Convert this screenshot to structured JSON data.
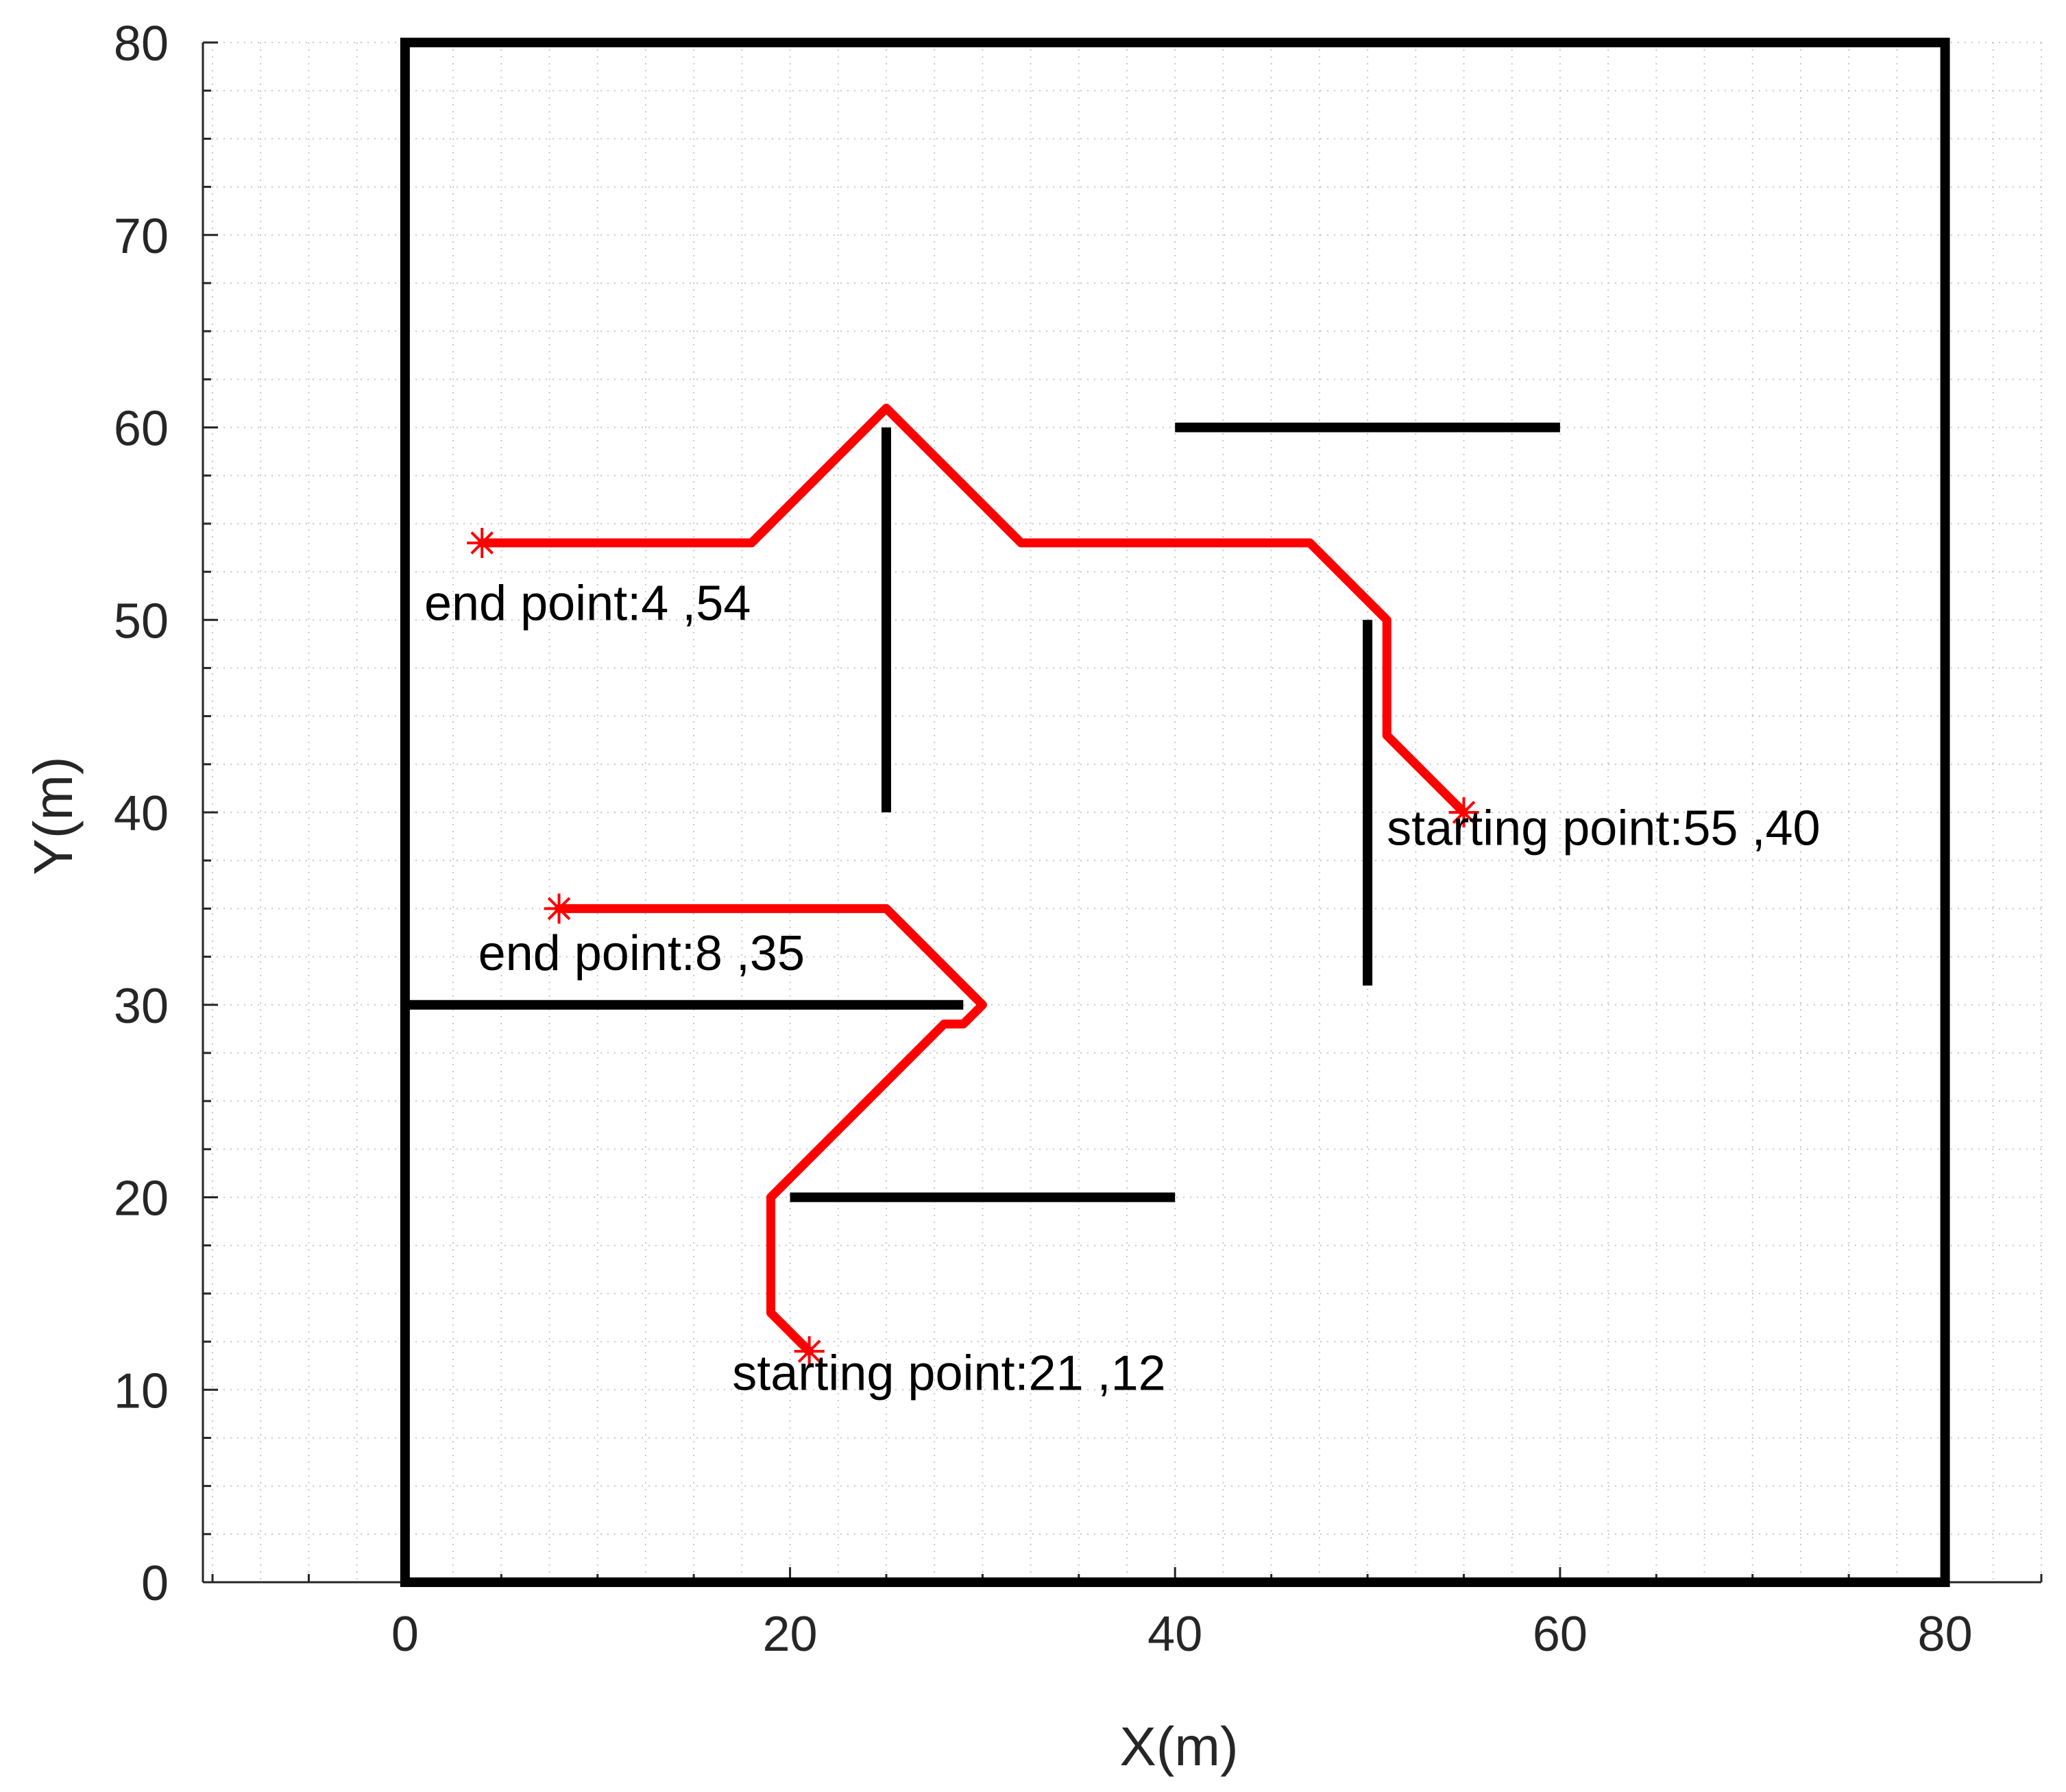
{
  "chart_data": {
    "type": "line",
    "xlabel": "X(m)",
    "ylabel": "Y(m)",
    "xlim": [
      -10.5,
      85
    ],
    "ylim": [
      0,
      80
    ],
    "xticks": [
      0,
      20,
      40,
      60,
      80
    ],
    "yticks": [
      0,
      10,
      20,
      30,
      40,
      50,
      60,
      70,
      80
    ],
    "grid": "minor-dotted",
    "colors": {
      "path": "#ff0000",
      "obstacle": "#000000",
      "grid": "#c8c8c8"
    },
    "boundary": {
      "x": [
        0,
        80
      ],
      "y": [
        0,
        80
      ]
    },
    "obstacles": [
      {
        "x": [
          25,
          25
        ],
        "y": [
          40,
          60
        ]
      },
      {
        "x": [
          40,
          60
        ],
        "y": [
          60,
          60
        ]
      },
      {
        "x": [
          50,
          50
        ],
        "y": [
          31,
          50
        ]
      },
      {
        "x": [
          0,
          29
        ],
        "y": [
          30,
          30
        ]
      },
      {
        "x": [
          20,
          40
        ],
        "y": [
          20,
          20
        ]
      }
    ],
    "series": [
      {
        "points": [
          [
            55,
            40
          ],
          [
            51,
            44
          ],
          [
            51,
            50
          ],
          [
            47,
            54
          ],
          [
            32,
            54
          ],
          [
            25,
            61
          ],
          [
            18,
            54
          ],
          [
            4,
            54
          ]
        ],
        "start": [
          55,
          40
        ],
        "end": [
          4,
          54
        ]
      },
      {
        "points": [
          [
            21,
            12
          ],
          [
            19,
            14
          ],
          [
            19,
            20
          ],
          [
            28,
            29
          ],
          [
            29,
            29
          ],
          [
            30,
            30
          ],
          [
            25,
            35
          ],
          [
            8,
            35
          ]
        ],
        "start": [
          21,
          12
        ],
        "end": [
          8,
          35
        ]
      }
    ],
    "annotations": [
      {
        "text": "end point:4 ,54",
        "x": 1,
        "y": 50
      },
      {
        "text": "starting point:55 ,40",
        "x": 51,
        "y": 38.3
      },
      {
        "text": "end point:8 ,35",
        "x": 3.8,
        "y": 31.8
      },
      {
        "text": "starting point:21 ,12",
        "x": 17,
        "y": 10
      }
    ]
  }
}
